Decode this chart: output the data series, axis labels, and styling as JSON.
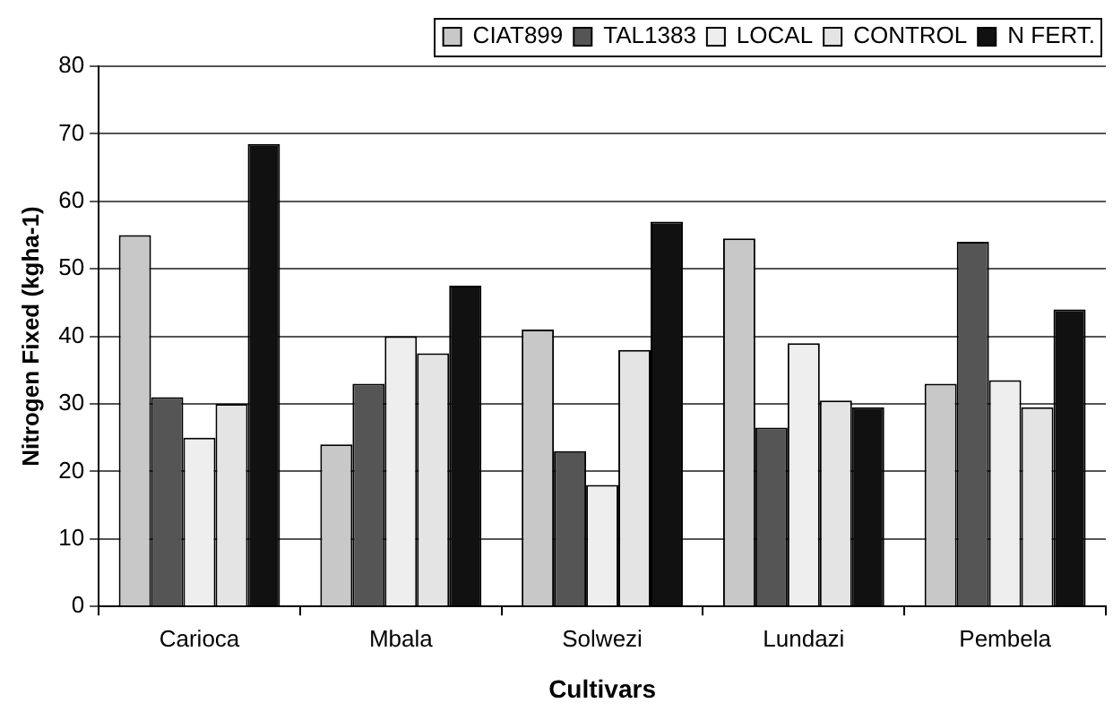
{
  "chart_data": {
    "type": "bar",
    "xlabel": "Cultivars",
    "ylabel": "Nitrogen Fixed (kgha-1)",
    "categories": [
      "Carioca",
      "Mbala",
      "Solwezi",
      "Lundazi",
      "Pembela"
    ],
    "series": [
      {
        "name": "CIAT899",
        "color": "#c8c8c8",
        "values": [
          55,
          24,
          41,
          54.5,
          33
        ]
      },
      {
        "name": "TAL1383",
        "color": "#555555",
        "values": [
          31,
          33,
          23,
          26.5,
          54
        ]
      },
      {
        "name": "LOCAL",
        "color": "#eeeeee",
        "values": [
          25,
          40,
          18,
          39,
          33.5
        ]
      },
      {
        "name": "CONTROL",
        "color": "#e4e4e4",
        "values": [
          30,
          37.5,
          38,
          30.5,
          29.5
        ]
      },
      {
        "name": "N FERT.",
        "color": "#111111",
        "values": [
          68.5,
          47.5,
          57,
          29.5,
          44
        ]
      }
    ],
    "ylim": [
      0,
      80
    ],
    "yticks": [
      0,
      10,
      20,
      30,
      40,
      50,
      60,
      70,
      80
    ],
    "grid": "y",
    "legend": "top right"
  }
}
